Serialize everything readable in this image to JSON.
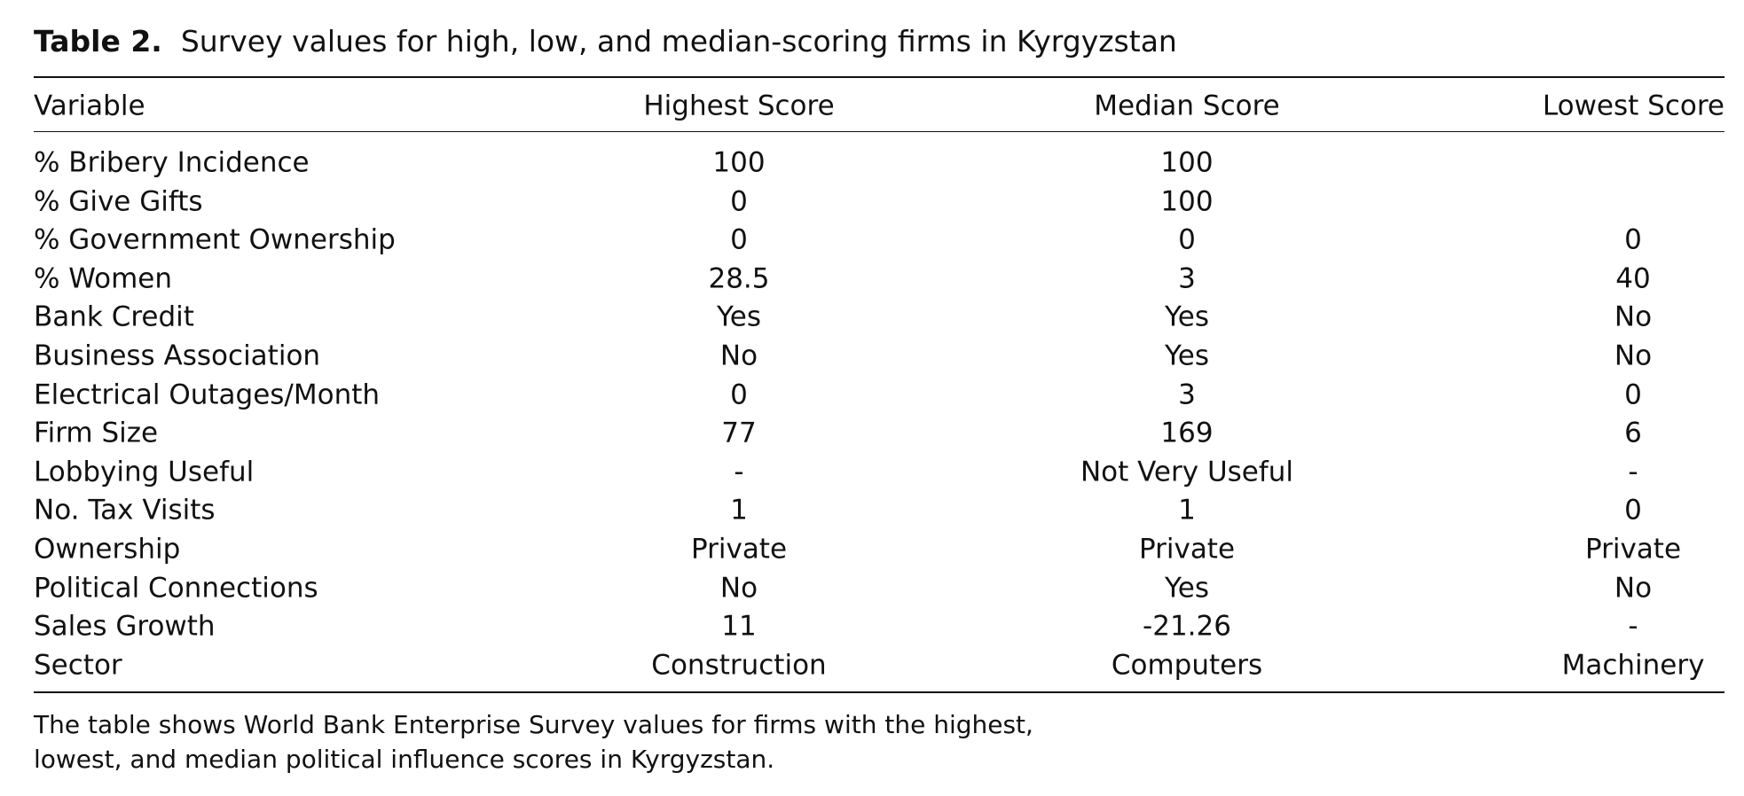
{
  "title": {
    "label": "Table 2.",
    "caption": "Survey values for high, low, and median-scoring firms in Kyrgyzstan"
  },
  "table": {
    "columns": [
      "Variable",
      "Highest Score",
      "Median Score",
      "Lowest Score"
    ],
    "rows": [
      [
        "% Bribery Incidence",
        100,
        100,
        null
      ],
      [
        "% Give Gifts",
        0,
        100,
        null
      ],
      [
        "% Government Ownership",
        0,
        0,
        0
      ],
      [
        "% Women",
        28.5,
        3,
        40
      ],
      [
        "Bank Credit",
        "Yes",
        "Yes",
        "No"
      ],
      [
        "Business Association",
        "No",
        "Yes",
        "No"
      ],
      [
        "Electrical Outages/Month",
        0,
        3,
        0
      ],
      [
        "Firm Size",
        77,
        169,
        6
      ],
      [
        "Lobbying Useful",
        "-",
        "Not Very Useful",
        "-"
      ],
      [
        "No. Tax Visits",
        1,
        1,
        0
      ],
      [
        "Ownership",
        "Private",
        "Private",
        "Private"
      ],
      [
        "Political Connections",
        "No",
        "Yes",
        "No"
      ],
      [
        "Sales Growth",
        11,
        -21.26,
        "-"
      ],
      [
        "Sector",
        "Construction",
        "Computers",
        "Machinery"
      ]
    ]
  },
  "footnote": [
    "The table shows World Bank Enterprise Survey values for firms with the highest,",
    "lowest, and median political influence scores in Kyrgyzstan."
  ]
}
